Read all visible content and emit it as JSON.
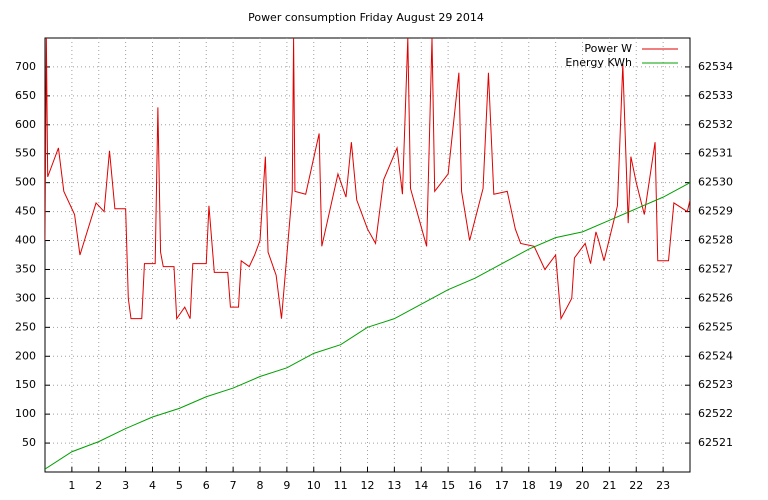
{
  "chart_data": {
    "type": "line",
    "title": "Power consumption Friday August 29 2014",
    "xlim": [
      0,
      24
    ],
    "xticks": [
      1,
      2,
      3,
      4,
      5,
      6,
      7,
      8,
      9,
      10,
      11,
      12,
      13,
      14,
      15,
      16,
      17,
      18,
      19,
      20,
      21,
      22,
      23
    ],
    "ylim": [
      0,
      750
    ],
    "yticks": [
      50,
      100,
      150,
      200,
      250,
      300,
      350,
      400,
      450,
      500,
      550,
      600,
      650,
      700
    ],
    "y2lim": [
      62520,
      62535
    ],
    "y2ticks": [
      62521,
      62522,
      62523,
      62524,
      62525,
      62526,
      62527,
      62528,
      62529,
      62530,
      62531,
      62532,
      62533,
      62534
    ],
    "grid": true,
    "legend": "top-right",
    "series": [
      {
        "name": "Power W",
        "color": "#e00000",
        "x": [
          0,
          0.05,
          0.1,
          0.5,
          0.7,
          1.1,
          1.3,
          1.9,
          2.2,
          2.4,
          2.6,
          3.0,
          3.1,
          3.2,
          3.6,
          3.7,
          4.1,
          4.2,
          4.3,
          4.4,
          4.8,
          4.9,
          5.2,
          5.4,
          5.5,
          6.0,
          6.1,
          6.3,
          6.8,
          6.9,
          7.2,
          7.3,
          7.6,
          7.8,
          8.0,
          8.2,
          8.3,
          8.6,
          8.8,
          9.2,
          9.25,
          9.3,
          9.7,
          10.2,
          10.3,
          10.9,
          11.2,
          11.4,
          11.6,
          12.0,
          12.3,
          12.6,
          13.1,
          13.3,
          13.5,
          13.6,
          14.2,
          14.4,
          14.5,
          15.0,
          15.4,
          15.5,
          15.8,
          16.3,
          16.5,
          16.7,
          17.2,
          17.5,
          17.7,
          18.2,
          18.4,
          18.6,
          19.0,
          19.2,
          19.6,
          19.7,
          20.1,
          20.3,
          20.5,
          20.6,
          20.8,
          21.3,
          21.5,
          21.7,
          21.8,
          22.0,
          22.3,
          22.7,
          22.8,
          23.2,
          23.4,
          23.9,
          24
        ],
        "values": [
          400,
          750,
          510,
          560,
          485,
          445,
          375,
          465,
          450,
          555,
          455,
          455,
          300,
          265,
          265,
          360,
          360,
          630,
          380,
          355,
          355,
          265,
          285,
          265,
          360,
          360,
          460,
          345,
          345,
          285,
          285,
          365,
          355,
          375,
          400,
          545,
          380,
          340,
          265,
          485,
          750,
          485,
          480,
          585,
          390,
          515,
          475,
          570,
          470,
          420,
          395,
          505,
          560,
          480,
          750,
          490,
          390,
          750,
          485,
          515,
          690,
          485,
          400,
          490,
          690,
          480,
          485,
          420,
          395,
          390,
          370,
          350,
          375,
          265,
          300,
          370,
          395,
          360,
          415,
          400,
          365,
          460,
          705,
          430,
          545,
          500,
          445,
          570,
          365,
          365,
          465,
          450,
          470
        ]
      },
      {
        "name": "Energy KWh",
        "color": "#00a000",
        "axis": "y2",
        "x": [
          0,
          1,
          2,
          3,
          4,
          5,
          6,
          7,
          8,
          9,
          10,
          11,
          12,
          13,
          14,
          15,
          16,
          17,
          18,
          19,
          20,
          21,
          22,
          23,
          24
        ],
        "values": [
          62520.1,
          62520.7,
          62521.05,
          62521.5,
          62521.9,
          62522.2,
          62522.6,
          62522.9,
          62523.3,
          62523.6,
          62524.1,
          62524.4,
          62525,
          62525.3,
          62525.8,
          62526.3,
          62526.7,
          62527.2,
          62527.7,
          62528.1,
          62528.3,
          62528.7,
          62529.1,
          62529.5,
          62530
        ]
      }
    ]
  }
}
